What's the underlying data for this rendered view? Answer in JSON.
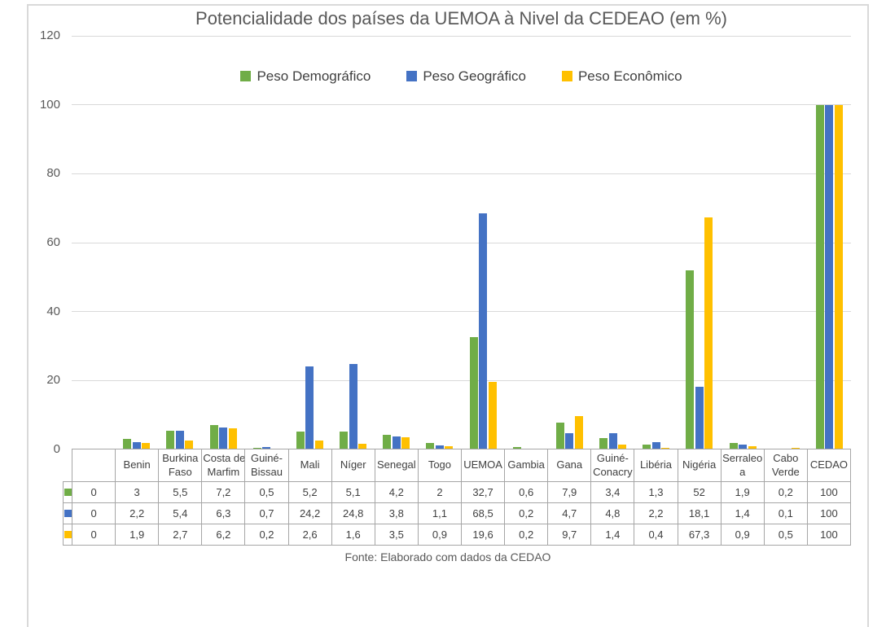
{
  "chart_data": {
    "type": "bar",
    "title": "Potencialidade dos países da UEMOA à Nivel da CEDEAO (em %)",
    "source_note": "Fonte: Elaborado com dados da CEDAO",
    "legend_position": "top",
    "grid": true,
    "categories": [
      "",
      "Benin",
      "Burkina Faso",
      "Costa de Marfim",
      "Guiné-Bissau",
      "Mali",
      "Níger",
      "Senegal",
      "Togo",
      "UEMOA",
      "Gambia",
      "Gana",
      "Guiné-Conacry",
      "Libéria",
      "Nigéria",
      "Serraleoa",
      "Cabo Verde",
      "CEDAO"
    ],
    "table_headers": [
      "",
      "Benin",
      "Burkina\nFaso",
      "Costa de\nMarfim",
      "Guiné-\nBissau",
      "Mali",
      "Níger",
      "Senegal",
      "Togo",
      "UEMOA",
      "Gambia",
      "Gana",
      "Guiné-\nConacry",
      "Libéria",
      "Nigéria",
      "Serraleo\na",
      "Cabo\nVerde",
      "CEDAO"
    ],
    "series": [
      {
        "name": "Peso Demográfico",
        "color": "#70AD47",
        "values": [
          0,
          3,
          5.5,
          7.2,
          0.5,
          5.2,
          5.1,
          4.2,
          2,
          32.7,
          0.6,
          7.9,
          3.4,
          1.3,
          52,
          1.9,
          0.2,
          100
        ],
        "display": [
          "0",
          "3",
          "5,5",
          "7,2",
          "0,5",
          "5,2",
          "5,1",
          "4,2",
          "2",
          "32,7",
          "0,6",
          "7,9",
          "3,4",
          "1,3",
          "52",
          "1,9",
          "0,2",
          "100"
        ]
      },
      {
        "name": "Peso Geográfico",
        "color": "#4472C4",
        "values": [
          0,
          2.2,
          5.4,
          6.3,
          0.7,
          24.2,
          24.8,
          3.8,
          1.1,
          68.5,
          0.2,
          4.7,
          4.8,
          2.2,
          18.1,
          1.4,
          0.1,
          100
        ],
        "display": [
          "0",
          "2,2",
          "5,4",
          "6,3",
          "0,7",
          "24,2",
          "24,8",
          "3,8",
          "1,1",
          "68,5",
          "0,2",
          "4,7",
          "4,8",
          "2,2",
          "18,1",
          "1,4",
          "0,1",
          "100"
        ]
      },
      {
        "name": "Peso Econômico",
        "color": "#FFC000",
        "values": [
          0,
          1.9,
          2.7,
          6.2,
          0.2,
          2.6,
          1.6,
          3.5,
          0.9,
          19.6,
          0.2,
          9.7,
          1.4,
          0.4,
          67.3,
          0.9,
          0.5,
          100
        ],
        "display": [
          "0",
          "1,9",
          "2,7",
          "6,2",
          "0,2",
          "2,6",
          "1,6",
          "3,5",
          "0,9",
          "19,6",
          "0,2",
          "9,7",
          "1,4",
          "0,4",
          "67,3",
          "0,9",
          "0,5",
          "100"
        ]
      }
    ],
    "y_axis": {
      "min": 0,
      "max": 120,
      "step": 20,
      "ticks": [
        0,
        20,
        40,
        60,
        80,
        100,
        120
      ]
    },
    "colors": {
      "gridline": "#d9d9d9",
      "frame": "#d9d9d9",
      "axis_text": "#595959",
      "table_border": "#a6a6a6",
      "table_text": "#404040"
    }
  }
}
